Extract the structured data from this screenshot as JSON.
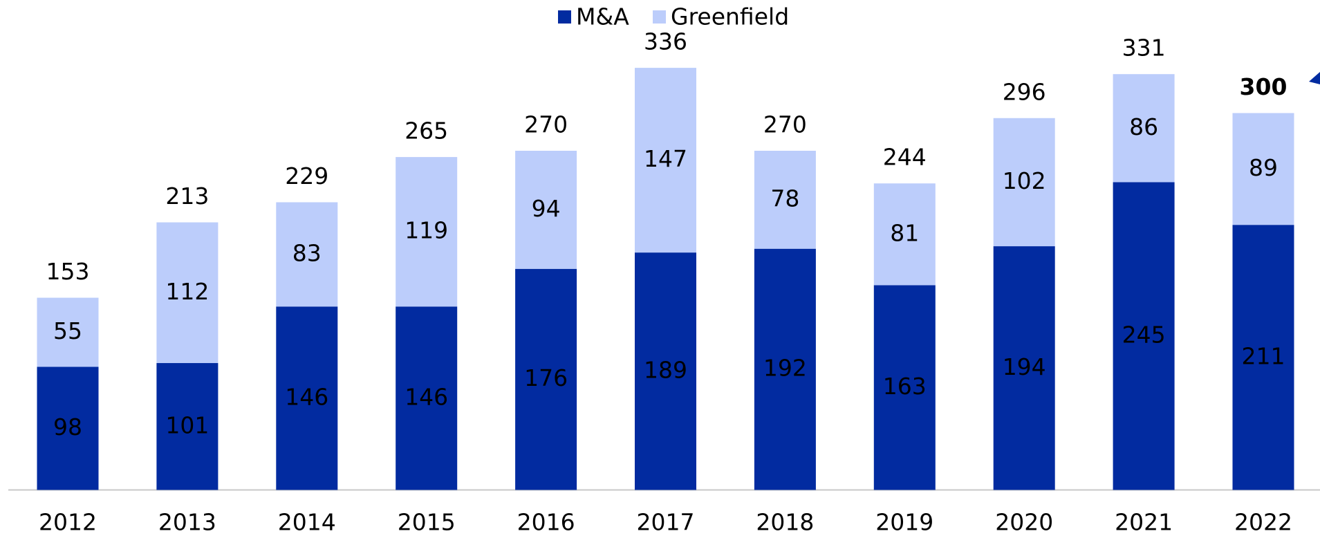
{
  "chart_data": {
    "type": "stacked_bar",
    "categories": [
      "2012",
      "2013",
      "2014",
      "2015",
      "2016",
      "2017",
      "2018",
      "2019",
      "2020",
      "2021",
      "2022"
    ],
    "series": [
      {
        "name": "M&A",
        "color": "#022ba0",
        "values": [
          98,
          101,
          146,
          146,
          176,
          189,
          192,
          163,
          194,
          245,
          211
        ]
      },
      {
        "name": "Greenfield",
        "color": "#bccdfb",
        "values": [
          55,
          112,
          83,
          119,
          94,
          147,
          78,
          81,
          102,
          86,
          89
        ]
      }
    ],
    "totals": [
      153,
      213,
      229,
      265,
      270,
      336,
      270,
      244,
      296,
      331,
      300
    ],
    "highlight": "2022",
    "ylim": [
      0,
      390
    ],
    "legend": "top"
  }
}
